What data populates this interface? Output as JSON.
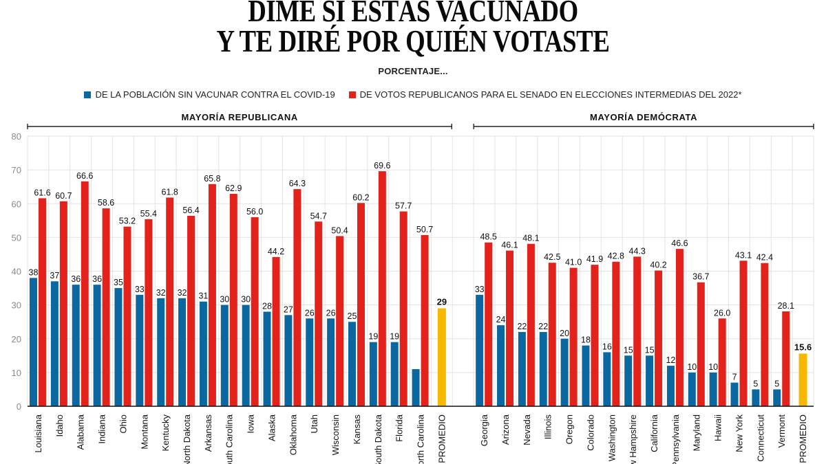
{
  "header": {
    "title_line_1": "DIME SI ESTÁS VACUNADO",
    "title_line_2": "Y TE DIRÉ POR QUIÉN VOTASTE",
    "subtitle": "PORCENTAJE..."
  },
  "colors": {
    "unvaccinated": "#0b67a0",
    "republican_vote": "#e3231b",
    "average": "#f7b900",
    "grid": "#e2e2e2",
    "axis": "#111111"
  },
  "chart_data": {
    "type": "bar",
    "title": "DIME SI ESTÁS VACUNADO Y TE DIRÉ POR QUIÉN VOTASTE",
    "subtitle": "PORCENTAJE...",
    "xlabel": "",
    "ylabel": "",
    "ylim": [
      0,
      80
    ],
    "yticks": [
      "0",
      "10",
      "20",
      "30",
      "40",
      "50",
      "60",
      "70",
      "80"
    ],
    "grid": true,
    "legend_position": "top-center",
    "legend": [
      {
        "key": "unvaccinated",
        "label": "DE LA POBLACIÓN SIN VACUNAR CONTRA EL COVID-19"
      },
      {
        "key": "republican_vote",
        "label": "DE VOTOS REPUBLICANOS PARA EL SENADO EN ELECCIONES INTERMEDIAS DEL 2022*"
      }
    ],
    "groups": [
      {
        "name": "MAYORÍA REPUBLICANA",
        "categories": [
          "Louisiana",
          "Idaho",
          "Alabama",
          "Indiana",
          "Ohio",
          "Montana",
          "Kentucky",
          "North Dakota",
          "Arkansas",
          "South Carolina",
          "Iowa",
          "Alaska",
          "Oklahoma",
          "Utah",
          "Wisconsin",
          "Kansas",
          "South Dakota",
          "Florida",
          "North Carolina"
        ],
        "series": [
          {
            "name": "DE LA POBLACIÓN SIN VACUNAR CONTRA EL COVID-19",
            "key": "unvaccinated",
            "values": [
              38,
              37,
              36,
              36,
              35,
              33,
              32,
              32,
              31,
              30,
              30,
              28,
              27,
              26,
              26,
              25,
              19,
              19,
              11
            ],
            "labels": [
              "38",
              "37",
              "36",
              "36",
              "35",
              "33",
              "32",
              "32",
              "31",
              "30",
              "30",
              "28",
              "27",
              "26",
              "26",
              "25",
              "19",
              "19",
              null
            ]
          },
          {
            "name": "DE VOTOS REPUBLICANOS PARA EL SENADO EN ELECCIONES INTERMEDIAS DEL 2022*",
            "key": "republican_vote",
            "values": [
              61.6,
              60.7,
              66.6,
              58.6,
              53.2,
              55.4,
              61.8,
              56.4,
              65.8,
              62.9,
              56.0,
              44.2,
              64.3,
              54.7,
              50.4,
              60.2,
              69.6,
              57.7,
              50.7
            ],
            "labels": [
              "61.6",
              "60.7",
              "66.6",
              "58.6",
              "53.2",
              "55.4",
              "61.8",
              "56.4",
              "65.8",
              "62.9",
              "56.0",
              "44.2",
              "64.3",
              "54.7",
              "50.4",
              "60.2",
              "69.6",
              "57.7",
              "50.7"
            ]
          }
        ],
        "average": {
          "category": "PROMEDIO",
          "value": 29,
          "label": "29"
        }
      },
      {
        "name": "MAYORÍA DEMÓCRATA",
        "categories": [
          "Georgia",
          "Arizona",
          "Nevada",
          "Illinois",
          "Oregon",
          "Colorado",
          "Washington",
          "New Hampshire",
          "California",
          "Pennsylvania",
          "Maryland",
          "Hawaii",
          "New York",
          "Connecticut",
          "Vermont"
        ],
        "series": [
          {
            "name": "DE LA POBLACIÓN SIN VACUNAR CONTRA EL COVID-19",
            "key": "unvaccinated",
            "values": [
              33,
              24,
              22,
              22,
              20,
              18,
              16,
              15,
              15,
              12,
              10,
              10,
              7,
              5,
              5
            ],
            "labels": [
              "33",
              "24",
              "22",
              "22",
              "20",
              "18",
              "16",
              "15",
              "15",
              "12",
              "10",
              "10",
              "7",
              "5",
              "5"
            ]
          },
          {
            "name": "DE VOTOS REPUBLICANOS PARA EL SENADO EN ELECCIONES INTERMEDIAS DEL 2022*",
            "key": "republican_vote",
            "values": [
              48.5,
              46.1,
              48.1,
              42.5,
              41.0,
              41.9,
              42.8,
              44.3,
              40.2,
              46.6,
              36.7,
              26.0,
              43.1,
              42.4,
              28.1
            ],
            "labels": [
              "48.5",
              "46.1",
              "48.1",
              "42.5",
              "41.0",
              "41.9",
              "42.8",
              "44.3",
              "40.2",
              "46.6",
              "36.7",
              "26.0",
              "43.1",
              "42.4",
              "28.1"
            ]
          }
        ],
        "average": {
          "category": "PROMEDIO",
          "value": 15.6,
          "label": "15.6"
        }
      }
    ]
  }
}
